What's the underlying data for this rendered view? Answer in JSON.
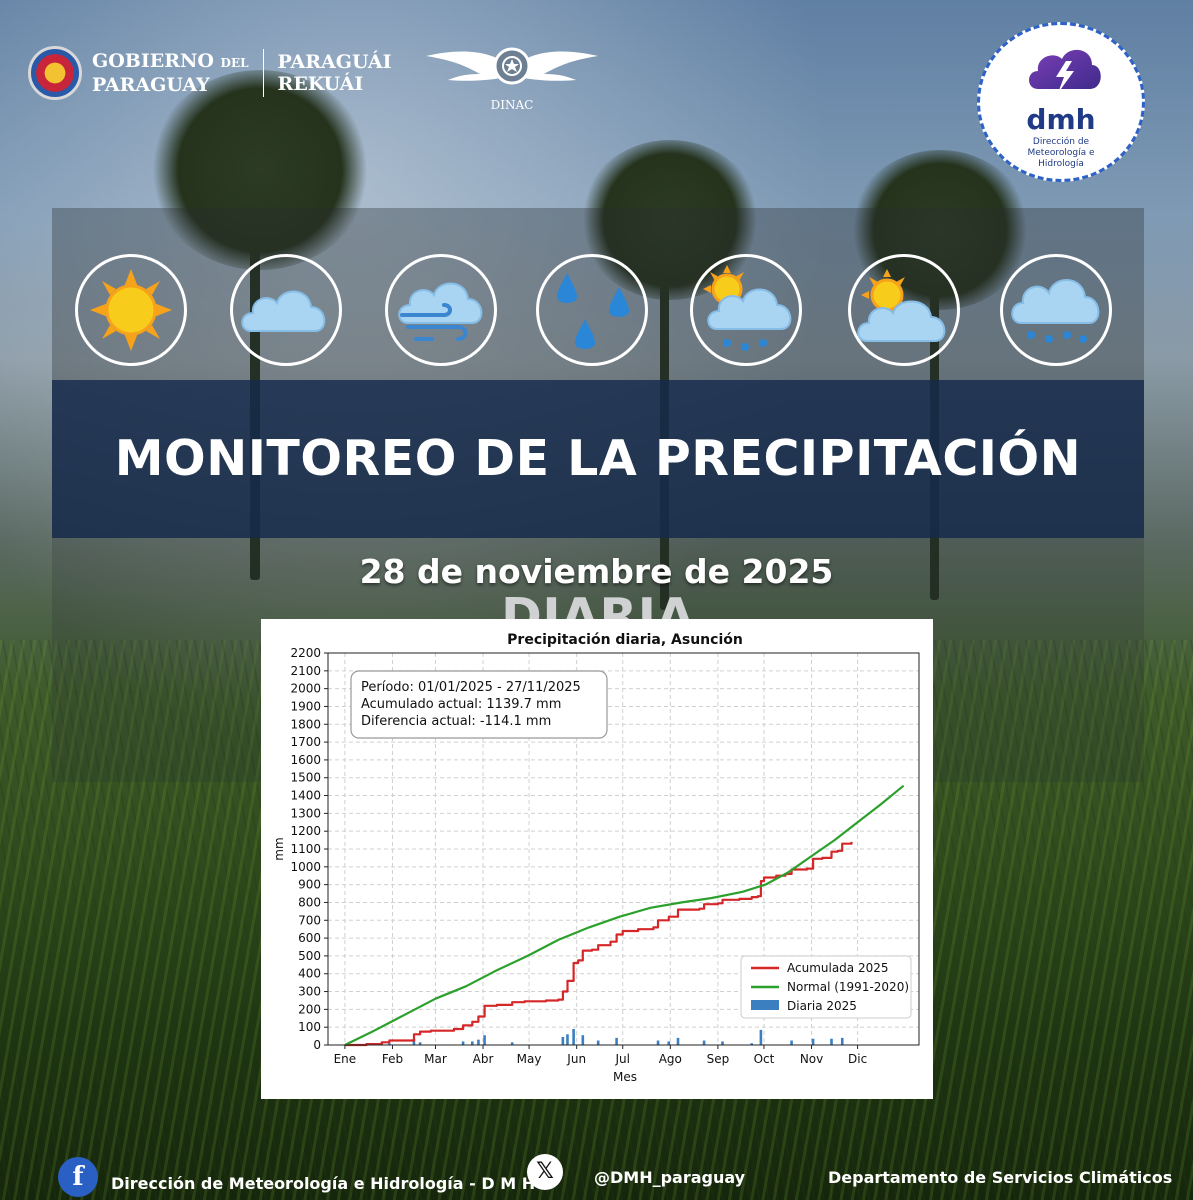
{
  "header": {
    "gov_line1": "GOBIERNO",
    "gov_del": "DEL",
    "gov_line2": "PARAGUAY",
    "gov_line3": "PARAGUÁI",
    "gov_line4": "REKUÁI",
    "dinac": "DINAC",
    "dmh_acronym": "dmh",
    "dmh_full": "Dirección de Meteorología e Hidrología"
  },
  "weather_icons": [
    "sun-icon",
    "cloud-icon",
    "wind-cloud-icon",
    "rain-drops-icon",
    "sun-cloud-rain-icon",
    "sun-cloud-icon",
    "cloud-rain-icon"
  ],
  "banner": {
    "title": "MONITOREO DE LA PRECIPITACIÓN DIARIA",
    "date": "28 de noviembre de 2025"
  },
  "chart_data": {
    "type": "line",
    "title": "Precipitación diaria, Asunción",
    "xlabel": "Mes",
    "ylabel": "mm",
    "ylim": [
      0,
      2200
    ],
    "yticks": [
      0,
      100,
      200,
      300,
      400,
      500,
      600,
      700,
      800,
      900,
      1000,
      1100,
      1200,
      1300,
      1400,
      1500,
      1600,
      1700,
      1800,
      1900,
      2000,
      2100,
      2200
    ],
    "xlim": [
      -10,
      375
    ],
    "month_ticks": {
      "labels": [
        "Ene",
        "Feb",
        "Mar",
        "Abr",
        "May",
        "Jun",
        "Jul",
        "Ago",
        "Sep",
        "Oct",
        "Nov",
        "Dic"
      ],
      "days": [
        1,
        32,
        60,
        91,
        121,
        152,
        182,
        213,
        244,
        274,
        305,
        335
      ]
    },
    "grid": true,
    "legend_position": "lower-right",
    "info_box": {
      "line1": "Período: 01/01/2025 - 27/11/2025",
      "line2": "Acumulado actual: 1139.7 mm",
      "line3": "Diferencia actual: -114.1 mm"
    },
    "series": [
      {
        "name": "Acumulada 2025",
        "color": "#d62728",
        "kind": "step",
        "points": [
          [
            1,
            0
          ],
          [
            15,
            5
          ],
          [
            25,
            15
          ],
          [
            30,
            25
          ],
          [
            44,
            25
          ],
          [
            46,
            60
          ],
          [
            50,
            75
          ],
          [
            57,
            80
          ],
          [
            72,
            90
          ],
          [
            78,
            110
          ],
          [
            84,
            130
          ],
          [
            88,
            160
          ],
          [
            92,
            220
          ],
          [
            100,
            225
          ],
          [
            110,
            240
          ],
          [
            118,
            245
          ],
          [
            132,
            250
          ],
          [
            140,
            255
          ],
          [
            143,
            300
          ],
          [
            146,
            360
          ],
          [
            150,
            460
          ],
          [
            153,
            475
          ],
          [
            156,
            530
          ],
          [
            162,
            535
          ],
          [
            166,
            560
          ],
          [
            174,
            580
          ],
          [
            178,
            620
          ],
          [
            182,
            640
          ],
          [
            192,
            650
          ],
          [
            202,
            660
          ],
          [
            205,
            700
          ],
          [
            212,
            720
          ],
          [
            218,
            760
          ],
          [
            232,
            765
          ],
          [
            235,
            790
          ],
          [
            244,
            795
          ],
          [
            247,
            815
          ],
          [
            258,
            820
          ],
          [
            266,
            830
          ],
          [
            270,
            835
          ],
          [
            272,
            920
          ],
          [
            274,
            940
          ],
          [
            282,
            950
          ],
          [
            288,
            960
          ],
          [
            292,
            985
          ],
          [
            302,
            990
          ],
          [
            306,
            1045
          ],
          [
            312,
            1050
          ],
          [
            318,
            1085
          ],
          [
            322,
            1090
          ],
          [
            325,
            1130
          ],
          [
            331,
            1140
          ]
        ]
      },
      {
        "name": "Normal (1991-2020)",
        "color": "#2ca02c",
        "kind": "line",
        "points": [
          [
            1,
            0
          ],
          [
            20,
            80
          ],
          [
            40,
            170
          ],
          [
            60,
            260
          ],
          [
            80,
            330
          ],
          [
            100,
            420
          ],
          [
            120,
            500
          ],
          [
            140,
            590
          ],
          [
            160,
            660
          ],
          [
            180,
            720
          ],
          [
            200,
            770
          ],
          [
            220,
            800
          ],
          [
            240,
            825
          ],
          [
            260,
            860
          ],
          [
            275,
            900
          ],
          [
            290,
            970
          ],
          [
            305,
            1060
          ],
          [
            320,
            1150
          ],
          [
            335,
            1250
          ],
          [
            350,
            1350
          ],
          [
            365,
            1455
          ]
        ]
      },
      {
        "name": "Diaria 2025",
        "color": "#3b7fc0",
        "kind": "bar",
        "points": [
          [
            15,
            5
          ],
          [
            25,
            10
          ],
          [
            30,
            10
          ],
          [
            46,
            35
          ],
          [
            50,
            15
          ],
          [
            78,
            20
          ],
          [
            84,
            20
          ],
          [
            88,
            30
          ],
          [
            92,
            55
          ],
          [
            110,
            15
          ],
          [
            143,
            45
          ],
          [
            146,
            60
          ],
          [
            150,
            90
          ],
          [
            156,
            55
          ],
          [
            166,
            25
          ],
          [
            178,
            40
          ],
          [
            205,
            25
          ],
          [
            212,
            20
          ],
          [
            218,
            40
          ],
          [
            235,
            25
          ],
          [
            247,
            20
          ],
          [
            266,
            10
          ],
          [
            272,
            85
          ],
          [
            292,
            25
          ],
          [
            306,
            35
          ],
          [
            318,
            35
          ],
          [
            325,
            40
          ]
        ]
      }
    ]
  },
  "footer": {
    "facebook_icon": "f",
    "facebook_text": "Dirección de Meteorología e Hidrología - D M H",
    "x_icon": "𝕏",
    "x_handle": "@DMH_paraguay",
    "department": "Departamento de Servicios  Climáticos"
  }
}
